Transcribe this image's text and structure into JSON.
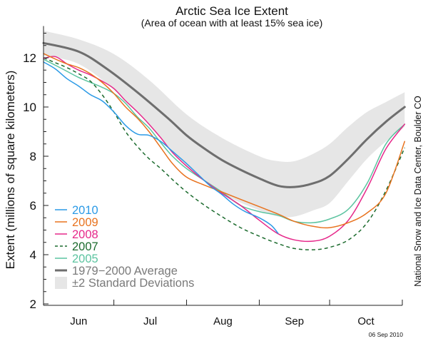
{
  "chart_data": {
    "type": "line",
    "title": "Arctic Sea Ice Extent",
    "subtitle": "(Area of ocean with at least 15% sea ice)",
    "xlabel": "",
    "ylabel": "Extent (millions of square kilometers)",
    "ylim": [
      2,
      13
    ],
    "yticks": [
      2,
      4,
      6,
      8,
      10,
      12
    ],
    "x_unit": "days since Jun 1",
    "xlim": [
      0,
      154
    ],
    "month_boundaries": [
      0,
      30,
      61,
      92,
      122,
      153
    ],
    "month_labels": [
      "Jun",
      "Jul",
      "Aug",
      "Sep",
      "Oct"
    ],
    "grid": false,
    "legend_position": "bottom-left",
    "credit": "National Snow and Ice Data Center, Boulder CO",
    "date_stamp": "06 Sep 2010",
    "std_band": {
      "name": "±2 Standard Deviations",
      "color": "#e6e6e6",
      "x": [
        0,
        15,
        30,
        45,
        61,
        76,
        92,
        100,
        107,
        115,
        122,
        130,
        138,
        146,
        154
      ],
      "upper": [
        13.1,
        12.75,
        12.15,
        11.1,
        9.7,
        8.75,
        8.0,
        7.8,
        7.8,
        8.1,
        8.5,
        9.2,
        9.8,
        10.2,
        10.6
      ],
      "lower": [
        12.1,
        11.75,
        10.7,
        9.3,
        7.6,
        6.5,
        5.8,
        5.55,
        5.55,
        5.8,
        6.1,
        7.0,
        7.9,
        8.6,
        9.2
      ]
    },
    "series": [
      {
        "name": "1979−2000 Average",
        "color": "#6e6e6e",
        "dash": false,
        "width": 3,
        "x": [
          0,
          15,
          27,
          40,
          53,
          61,
          68,
          76,
          84,
          92,
          100,
          107,
          115,
          122,
          130,
          138,
          146,
          154
        ],
        "values": [
          12.6,
          12.25,
          11.55,
          10.6,
          9.55,
          8.85,
          8.35,
          7.85,
          7.45,
          7.1,
          6.8,
          6.75,
          6.9,
          7.2,
          7.9,
          8.7,
          9.4,
          10.0
        ]
      },
      {
        "name": "2010",
        "color": "#2b9ae6",
        "dash": false,
        "width": 1.5,
        "x": [
          0,
          5,
          10,
          15,
          20,
          25,
          30,
          35,
          40,
          45,
          50,
          55,
          61,
          66,
          71,
          76,
          81,
          86,
          92,
          97,
          100
        ],
        "values": [
          11.83,
          11.55,
          11.15,
          10.85,
          10.5,
          10.25,
          9.8,
          9.25,
          8.9,
          8.85,
          8.6,
          8.2,
          7.7,
          7.25,
          6.8,
          6.45,
          6.05,
          5.75,
          5.5,
          5.2,
          4.87
        ]
      },
      {
        "name": "2009",
        "color": "#e8731f",
        "dash": false,
        "width": 1.5,
        "x": [
          0,
          5,
          10,
          15,
          20,
          25,
          30,
          35,
          40,
          45,
          50,
          55,
          61,
          68,
          76,
          84,
          92,
          100,
          107,
          115,
          122,
          130,
          138,
          146,
          154
        ],
        "values": [
          12.17,
          11.95,
          11.75,
          11.6,
          11.35,
          11.0,
          10.55,
          10.0,
          9.55,
          9.0,
          8.35,
          7.7,
          7.15,
          6.85,
          6.55,
          6.25,
          5.95,
          5.65,
          5.35,
          5.15,
          5.1,
          5.3,
          5.7,
          6.5,
          8.6
        ]
      },
      {
        "name": "2008",
        "color": "#e6288a",
        "dash": false,
        "width": 1.5,
        "x": [
          0,
          5,
          10,
          15,
          20,
          25,
          30,
          35,
          40,
          45,
          50,
          55,
          61,
          68,
          76,
          84,
          92,
          100,
          107,
          115,
          122,
          130,
          138,
          146,
          154
        ],
        "values": [
          11.97,
          12.05,
          11.75,
          11.5,
          11.3,
          11.05,
          10.75,
          10.25,
          9.8,
          9.3,
          8.75,
          8.15,
          7.6,
          7.05,
          6.5,
          6.0,
          5.4,
          4.85,
          4.6,
          4.55,
          4.75,
          5.4,
          6.7,
          8.3,
          9.3
        ]
      },
      {
        "name": "2007",
        "color": "#1c6b2e",
        "dash": true,
        "width": 1.5,
        "x": [
          0,
          5,
          10,
          15,
          20,
          25,
          30,
          35,
          40,
          45,
          50,
          55,
          61,
          68,
          76,
          84,
          92,
          100,
          107,
          115,
          122,
          130,
          138,
          146,
          154
        ],
        "values": [
          12.0,
          11.8,
          11.6,
          11.35,
          11.05,
          10.5,
          9.8,
          9.0,
          8.4,
          7.9,
          7.5,
          7.05,
          6.55,
          6.05,
          5.55,
          5.1,
          4.75,
          4.45,
          4.25,
          4.2,
          4.3,
          4.6,
          5.3,
          6.6,
          8.35
        ]
      },
      {
        "name": "2005",
        "color": "#5cc4a0",
        "dash": false,
        "width": 1.5,
        "x": [
          0,
          5,
          10,
          15,
          20,
          25,
          30,
          35,
          40,
          45,
          50,
          55,
          61,
          68,
          76,
          84,
          92,
          100,
          107,
          115,
          122,
          130,
          138,
          146,
          154
        ],
        "values": [
          11.94,
          11.7,
          11.45,
          11.2,
          11.0,
          10.8,
          10.55,
          10.15,
          9.6,
          9.15,
          8.55,
          8.0,
          7.5,
          7.05,
          6.55,
          6.0,
          5.75,
          5.6,
          5.35,
          5.3,
          5.45,
          5.85,
          6.9,
          8.5,
          9.3
        ]
      }
    ]
  }
}
